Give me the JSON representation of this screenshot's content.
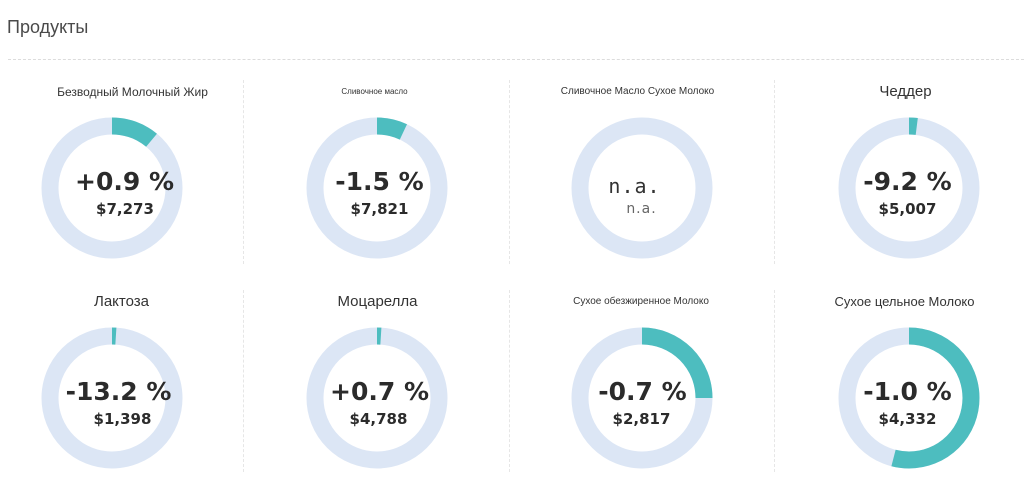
{
  "header": {
    "title": "Продукты"
  },
  "colors": {
    "ring_track": "#dce6f5",
    "ring_fill": "#4dbdbf"
  },
  "products": [
    {
      "title": "Безводный Молочный Жир",
      "percent": "+0.9 %",
      "price": "$7,273",
      "fill_fraction": 0.11,
      "na": false
    },
    {
      "title": "Сливочное масло",
      "percent": "-1.5 %",
      "price": "$7,821",
      "fill_fraction": 0.07,
      "na": false
    },
    {
      "title": "Сливочное Масло Сухое Молоко",
      "percent": "n.a.",
      "price": "n.a.",
      "fill_fraction": 0,
      "na": true
    },
    {
      "title": "Чеддер",
      "percent": "-9.2 %",
      "price": "$5,007",
      "fill_fraction": 0.02,
      "na": false
    },
    {
      "title": "Лактоза",
      "percent": "-13.2 %",
      "price": "$1,398",
      "fill_fraction": 0.01,
      "na": false
    },
    {
      "title": "Моцарелла",
      "percent": "+0.7 %",
      "price": "$4,788",
      "fill_fraction": 0.01,
      "na": false
    },
    {
      "title": "Сухое обезжиренное Молоко",
      "percent": "-0.7 %",
      "price": "$2,817",
      "fill_fraction": 0.25,
      "na": false
    },
    {
      "title": "Сухое цельное Молоко",
      "percent": "-1.0 %",
      "price": "$4,332",
      "fill_fraction": 0.54,
      "na": false
    }
  ]
}
